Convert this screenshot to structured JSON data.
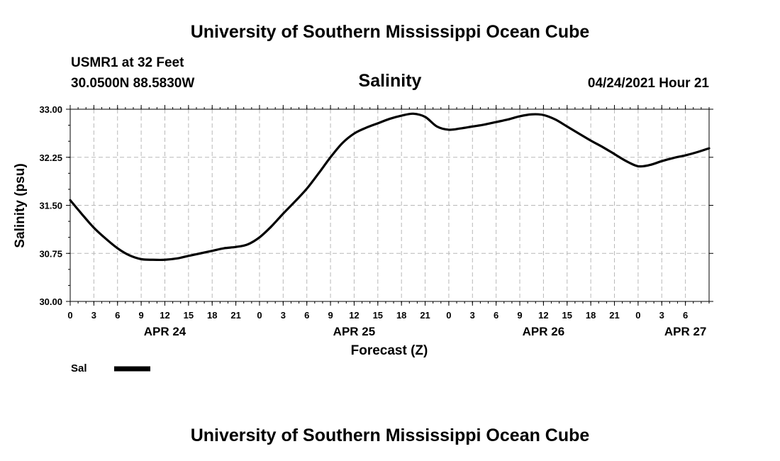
{
  "header": {
    "title": "University of Southern Mississippi Ocean Cube",
    "station": "USMR1 at 32 Feet",
    "coordinates": "30.0500N  88.5830W",
    "chart_title": "Salinity",
    "datetime": "04/24/2021 Hour 21"
  },
  "footer": {
    "title": "University of Southern Mississippi Ocean Cube"
  },
  "chart_data": {
    "type": "line",
    "title": "Salinity",
    "xlabel": "Forecast (Z)",
    "ylabel": "Salinity (psu)",
    "ylim": [
      30.0,
      33.0
    ],
    "yticks": [
      "30.00",
      "30.75",
      "31.50",
      "32.25",
      "33.00"
    ],
    "xlim": [
      0,
      81
    ],
    "x_unit": "hours since APR 24 00Z",
    "xtick_labels": [
      "0",
      "3",
      "6",
      "9",
      "12",
      "15",
      "18",
      "21",
      "0",
      "3",
      "6",
      "9",
      "12",
      "15",
      "18",
      "21",
      "0",
      "3",
      "6",
      "9",
      "12",
      "15",
      "18",
      "21",
      "0",
      "3",
      "6"
    ],
    "date_labels": [
      {
        "label": "APR 24",
        "hour": 12
      },
      {
        "label": "APR 25",
        "hour": 36
      },
      {
        "label": "APR 26",
        "hour": 60
      },
      {
        "label": "APR 27",
        "hour": 78
      }
    ],
    "grid": true,
    "legend": {
      "position": "bottom-left",
      "label": "Sal"
    },
    "series": [
      {
        "name": "Sal",
        "color": "#000000",
        "x": [
          0,
          1.5,
          3,
          4.5,
          6,
          7.5,
          9,
          10.5,
          12,
          13.5,
          15,
          16.5,
          18,
          19.5,
          21,
          22.5,
          24,
          25.5,
          27,
          28.5,
          30,
          31.5,
          33,
          34.5,
          36,
          37.5,
          39,
          40.5,
          42,
          43.5,
          45,
          46.5,
          48,
          49.5,
          51,
          52.5,
          54,
          55.5,
          57,
          58.5,
          60,
          61.5,
          63,
          64.5,
          66,
          67.5,
          69,
          70.5,
          72,
          73.5,
          75,
          76.5,
          78,
          79.5,
          81
        ],
        "values": [
          31.58,
          31.36,
          31.15,
          30.98,
          30.83,
          30.72,
          30.66,
          30.65,
          30.65,
          30.67,
          30.71,
          30.75,
          30.79,
          30.83,
          30.85,
          30.89,
          31.0,
          31.17,
          31.37,
          31.56,
          31.76,
          32.0,
          32.25,
          32.47,
          32.62,
          32.71,
          32.78,
          32.85,
          32.9,
          32.93,
          32.88,
          32.73,
          32.68,
          32.7,
          32.73,
          32.76,
          32.8,
          32.84,
          32.89,
          32.92,
          32.91,
          32.84,
          32.73,
          32.62,
          32.51,
          32.41,
          32.3,
          32.19,
          32.11,
          32.13,
          32.19,
          32.24,
          32.28,
          32.33,
          32.39
        ]
      }
    ]
  }
}
